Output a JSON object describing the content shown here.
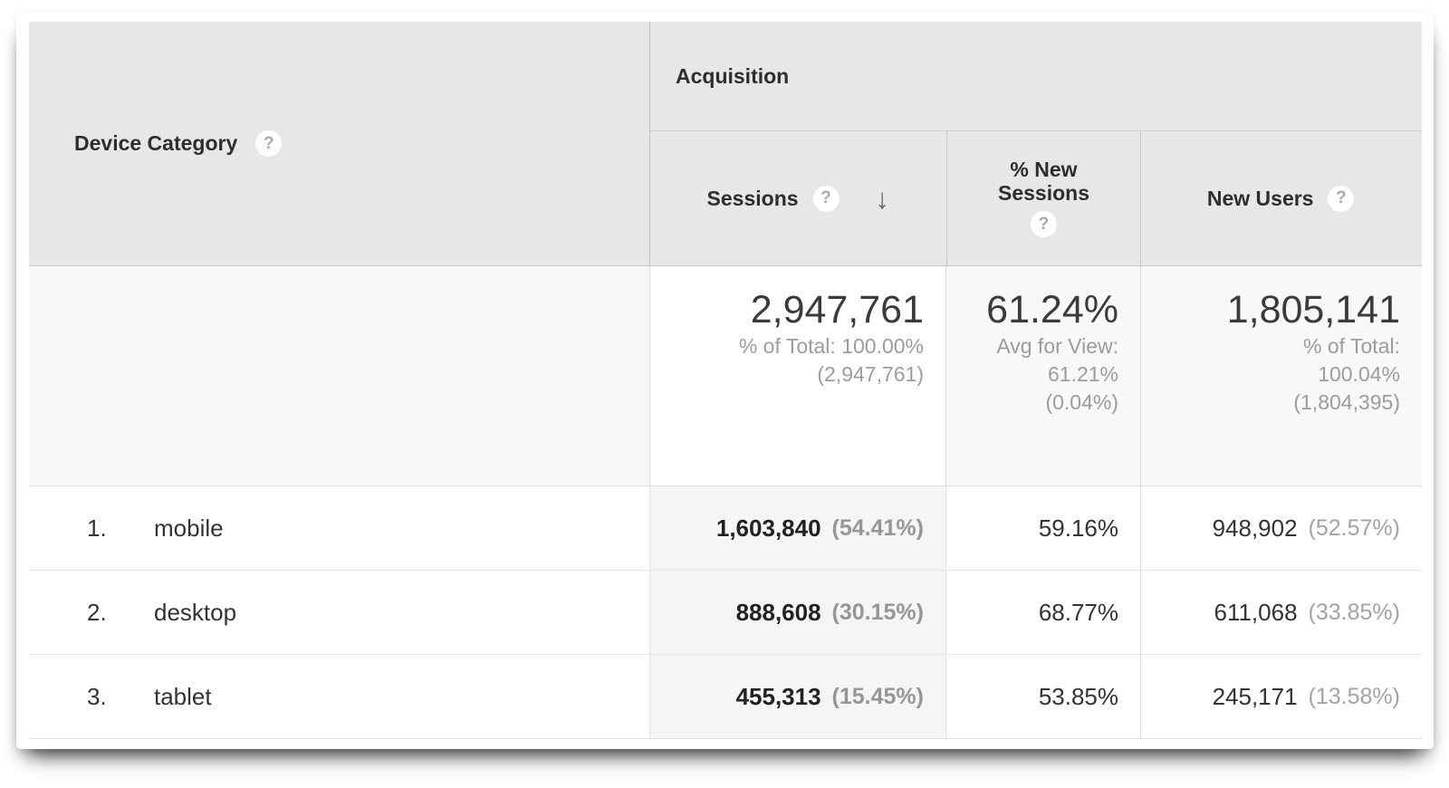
{
  "header": {
    "dimension_label": "Device Category",
    "group_label": "Acquisition",
    "metrics": {
      "sessions": "Sessions",
      "new_sessions": "% New Sessions",
      "new_users": "New Users"
    },
    "sorted_column": "Sessions",
    "sort_direction": "descending"
  },
  "icons": {
    "help": "?",
    "sort_descending": "↓"
  },
  "summary": {
    "sessions": {
      "value": "2,947,761",
      "lines": [
        "% of Total: 100.00%",
        "(2,947,761)"
      ]
    },
    "new_sessions": {
      "value": "61.24%",
      "lines": [
        "Avg for View:",
        "61.21%",
        "(0.04%)"
      ]
    },
    "new_users": {
      "value": "1,805,141",
      "lines": [
        "% of Total:",
        "100.04%",
        "(1,804,395)"
      ]
    }
  },
  "rows": [
    {
      "index": "1.",
      "label": "mobile",
      "sessions": "1,603,840",
      "sessions_pct": "(54.41%)",
      "new_sessions": "59.16%",
      "new_users": "948,902",
      "new_users_pct": "(52.57%)"
    },
    {
      "index": "2.",
      "label": "desktop",
      "sessions": "888,608",
      "sessions_pct": "(30.15%)",
      "new_sessions": "68.77%",
      "new_users": "611,068",
      "new_users_pct": "(33.85%)"
    },
    {
      "index": "3.",
      "label": "tablet",
      "sessions": "455,313",
      "sessions_pct": "(15.45%)",
      "new_sessions": "53.85%",
      "new_users": "245,171",
      "new_users_pct": "(13.58%)"
    }
  ],
  "colors": {
    "header_bg": "#e7e7e7",
    "summary_bg": "#f8f8f8",
    "sorted_column_bg": "#f5f5f5",
    "card_bg": "#ffffff",
    "text_dark": "#333333",
    "text_muted": "#9c9c9c"
  }
}
